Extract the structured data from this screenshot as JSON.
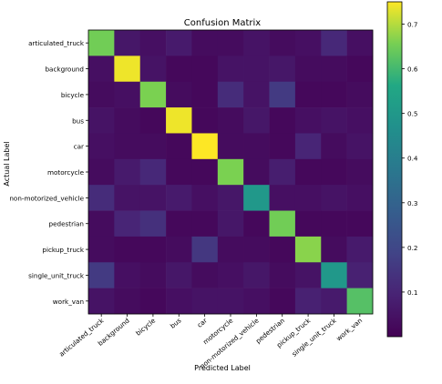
{
  "chart_data": {
    "type": "heatmap",
    "title": "Confusion Matrix",
    "xlabel": "Predicted Label",
    "ylabel": "Actual Label",
    "labels": [
      "articulated_truck",
      "background",
      "bicycle",
      "bus",
      "car",
      "motorcycle",
      "non-motorized_vehicle",
      "pedestrian",
      "pickup_truck",
      "single_unit_truck",
      "work_van"
    ],
    "colormap": "viridis",
    "vmin": 0.0,
    "vmax": 0.75,
    "colorbar_ticks": [
      "0.1",
      "0.2",
      "0.3",
      "0.4",
      "0.5",
      "0.6",
      "0.7"
    ],
    "colorbar_tick_values": [
      0.1,
      0.2,
      0.3,
      0.4,
      0.5,
      0.6,
      0.7
    ],
    "matrix": [
      [
        0.65,
        0.06,
        0.04,
        0.07,
        0.03,
        0.03,
        0.05,
        0.03,
        0.04,
        0.11,
        0.04
      ],
      [
        0.04,
        0.74,
        0.05,
        0.02,
        0.02,
        0.05,
        0.05,
        0.06,
        0.03,
        0.03,
        0.02
      ],
      [
        0.03,
        0.04,
        0.66,
        0.03,
        0.02,
        0.12,
        0.05,
        0.16,
        0.02,
        0.02,
        0.03
      ],
      [
        0.05,
        0.03,
        0.02,
        0.74,
        0.02,
        0.03,
        0.06,
        0.02,
        0.04,
        0.05,
        0.04
      ],
      [
        0.04,
        0.03,
        0.03,
        0.02,
        0.76,
        0.03,
        0.03,
        0.02,
        0.1,
        0.03,
        0.05
      ],
      [
        0.03,
        0.07,
        0.11,
        0.02,
        0.02,
        0.66,
        0.03,
        0.08,
        0.02,
        0.02,
        0.03
      ],
      [
        0.12,
        0.05,
        0.05,
        0.07,
        0.04,
        0.06,
        0.5,
        0.04,
        0.04,
        0.05,
        0.04
      ],
      [
        0.03,
        0.1,
        0.13,
        0.02,
        0.02,
        0.06,
        0.02,
        0.65,
        0.02,
        0.02,
        0.02
      ],
      [
        0.03,
        0.02,
        0.02,
        0.03,
        0.15,
        0.03,
        0.03,
        0.02,
        0.67,
        0.03,
        0.07
      ],
      [
        0.16,
        0.04,
        0.03,
        0.06,
        0.03,
        0.04,
        0.06,
        0.03,
        0.05,
        0.5,
        0.09
      ],
      [
        0.05,
        0.03,
        0.02,
        0.04,
        0.05,
        0.05,
        0.04,
        0.02,
        0.09,
        0.07,
        0.62
      ]
    ]
  }
}
